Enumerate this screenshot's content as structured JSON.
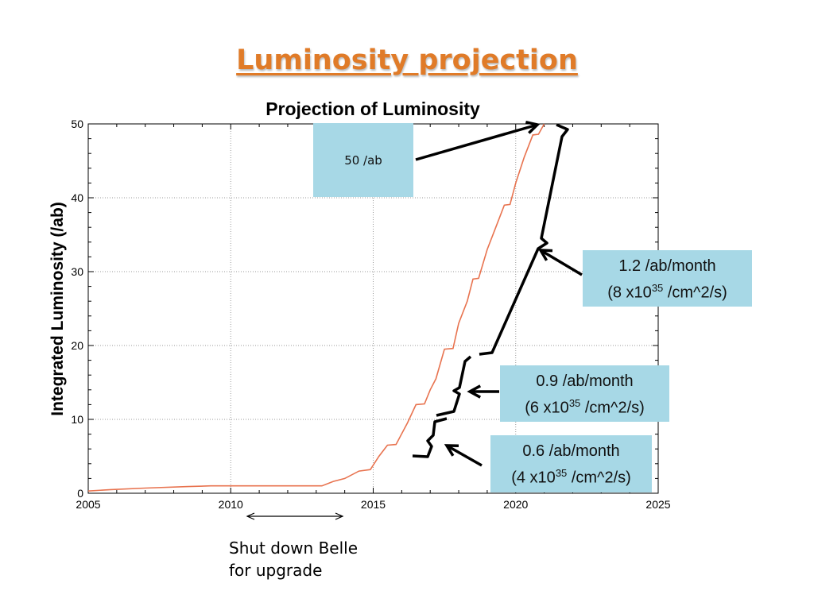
{
  "slide": {
    "title": "Luminosity projection"
  },
  "chart_data": {
    "type": "line",
    "title": "Projection of Luminosity",
    "xlabel": "",
    "ylabel": "Integrated Luminosity (/ab)",
    "xlim": [
      2005,
      2025
    ],
    "ylim": [
      0,
      50
    ],
    "x_ticks": [
      "2005",
      "2010",
      "2015",
      "2020",
      "2025"
    ],
    "y_ticks": [
      "0",
      "10",
      "20",
      "30",
      "40",
      "50"
    ],
    "grid": true,
    "series": [
      {
        "color": "#e8734f",
        "x": [
          2005.0,
          2005.8,
          2007.0,
          2008.5,
          2009.3,
          2013.2,
          2013.6,
          2014.0,
          2014.5,
          2014.9,
          2015.2,
          2015.5,
          2015.8,
          2016.2,
          2016.5,
          2016.8,
          2017.0,
          2017.2,
          2017.5,
          2017.8,
          2018.0,
          2018.3,
          2018.5,
          2018.7,
          2019.0,
          2019.3,
          2019.6,
          2019.8,
          2020.0,
          2020.3,
          2020.6,
          2020.8,
          2021.0
        ],
        "y": [
          0.3,
          0.5,
          0.7,
          0.9,
          1.0,
          1.0,
          1.6,
          2.0,
          3.0,
          3.2,
          5.0,
          6.5,
          6.6,
          9.5,
          12.0,
          12.1,
          14.0,
          15.5,
          19.5,
          19.6,
          23.0,
          26.0,
          29.0,
          29.1,
          33.0,
          36.0,
          39.0,
          39.1,
          42.0,
          45.5,
          48.5,
          48.6,
          50.0
        ]
      }
    ],
    "annotations": [
      {
        "lines": [
          "50 /ab"
        ]
      },
      {
        "lines": [
          "1.2 /ab/month"
        ],
        "sub": {
          "pre": "(8 x10",
          "sup": "35",
          "post": " /cm^2/s)"
        }
      },
      {
        "lines": [
          "0.9 /ab/month"
        ],
        "sub": {
          "pre": "(6 x10",
          "sup": "35",
          "post": " /cm^2/s)"
        }
      },
      {
        "lines": [
          "0.6 /ab/month"
        ],
        "sub": {
          "pre": "(4 x10",
          "sup": "35",
          "post": " /cm^2/s)"
        }
      }
    ]
  },
  "note": {
    "line1": "Shut down Belle",
    "line2": "for upgrade"
  }
}
